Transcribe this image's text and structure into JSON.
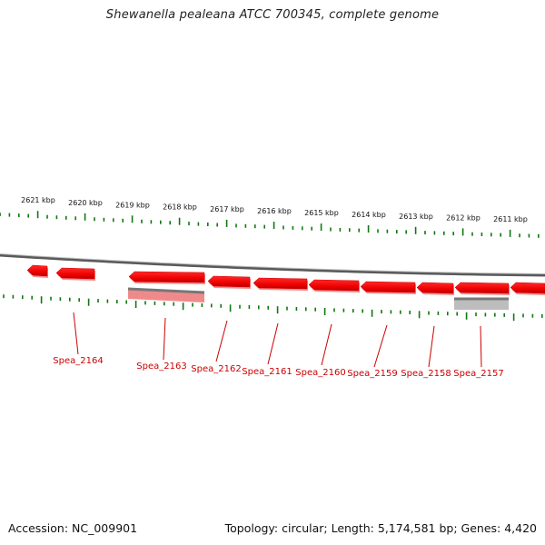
{
  "title": "Shewanella pealeana ATCC 700345, complete genome",
  "scale": {
    "unit": "kbp",
    "labels": [
      {
        "kbp": 2621,
        "text": "2621 kbp"
      },
      {
        "kbp": 2620,
        "text": "2620 kbp"
      },
      {
        "kbp": 2619,
        "text": "2619 kbp"
      },
      {
        "kbp": 2618,
        "text": "2618 kbp"
      },
      {
        "kbp": 2617,
        "text": "2617 kbp"
      },
      {
        "kbp": 2616,
        "text": "2616 kbp"
      },
      {
        "kbp": 2615,
        "text": "2615 kbp"
      },
      {
        "kbp": 2614,
        "text": "2614 kbp"
      },
      {
        "kbp": 2613,
        "text": "2613 kbp"
      },
      {
        "kbp": 2612,
        "text": "2612 kbp"
      },
      {
        "kbp": 2611,
        "text": "2611 kbp"
      }
    ]
  },
  "genes": [
    {
      "label": "Spea_2164",
      "strand": "reverse"
    },
    {
      "label": "Spea_2163",
      "strand": "reverse"
    },
    {
      "label": "Spea_2162",
      "strand": "reverse"
    },
    {
      "label": "Spea_2161",
      "strand": "reverse"
    },
    {
      "label": "Spea_2160",
      "strand": "reverse"
    },
    {
      "label": "Spea_2159",
      "strand": "reverse"
    },
    {
      "label": "Spea_2158",
      "strand": "reverse"
    },
    {
      "label": "Spea_2157",
      "strand": "reverse"
    }
  ],
  "colors": {
    "gene": "#ee0000",
    "gene_label": "#cc0000",
    "tick": "#117711",
    "backbone": "#777777",
    "feature_pink": "#f08a8a",
    "feature_grey": "#999999"
  },
  "footer": {
    "accession": "Accession: NC_009901",
    "summary": "Topology: circular; Length: 5,174,581 bp; Genes: 4,420"
  }
}
